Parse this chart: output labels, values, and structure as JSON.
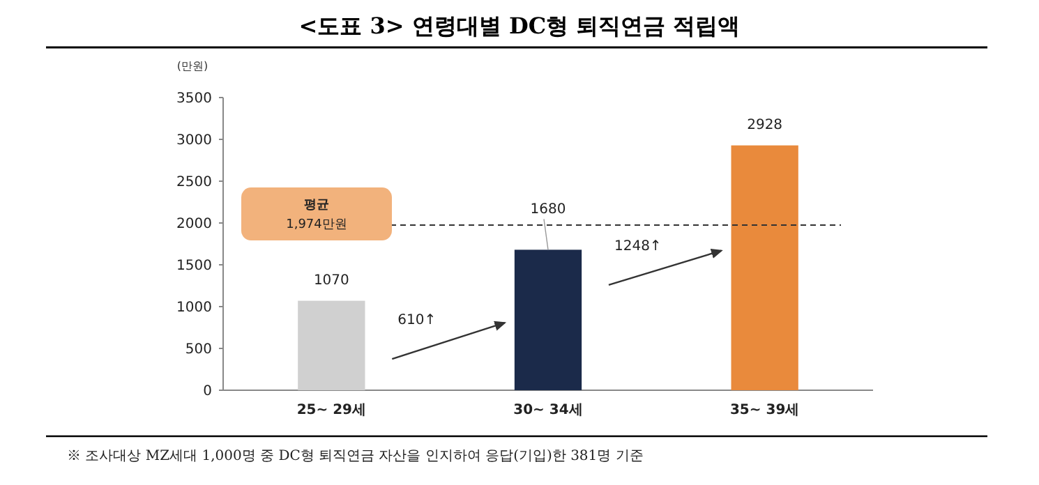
{
  "chart_data": {
    "type": "bar",
    "title": "<도표 3> 연령대별 DC형 퇴직연금 적립액",
    "ylabel": "(만원)",
    "categories": [
      "25~ 29세",
      "30~ 34세",
      "35~ 39세"
    ],
    "values": [
      1070,
      1680,
      2928
    ],
    "colors": [
      "#d0d0d0",
      "#1b2a4a",
      "#e98a3c"
    ],
    "ylim": [
      0,
      3500
    ],
    "yticks": [
      0,
      500,
      1000,
      1500,
      2000,
      2500,
      3000,
      3500
    ],
    "data_labels": true,
    "grid": false,
    "ref_lines": [
      {
        "axis": "y",
        "value": 1974,
        "label": "평균 1,974만원",
        "color": "#333333",
        "line_style": "dashed"
      }
    ],
    "annotations": [
      "610↑",
      "1248↑",
      "※ 조사대상 MZ세대 1,000명 중 DC형 퇴직연금 자산을 인지하여 응답(기입)한 381명 기준"
    ]
  }
}
